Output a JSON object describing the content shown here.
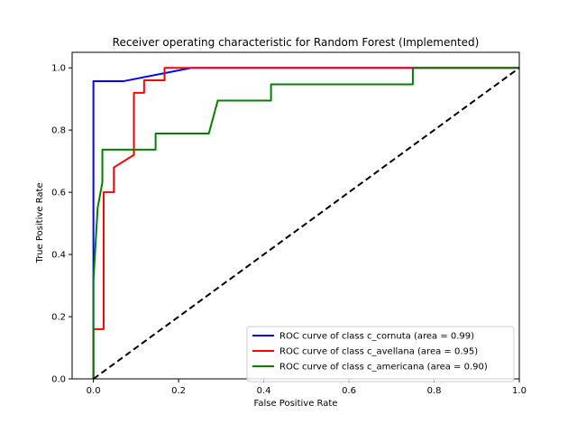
{
  "chart_data": {
    "type": "line",
    "title": "Receiver operating characteristic for Random Forest (Implemented)",
    "xlabel": "False Positive Rate",
    "ylabel": "True Positive Rate",
    "xlim": [
      -0.05,
      1.0
    ],
    "ylim": [
      0.0,
      1.05
    ],
    "xticks": [
      0.0,
      0.2,
      0.4,
      0.6,
      0.8,
      1.0
    ],
    "xtick_labels": [
      "0.0",
      "0.2",
      "0.4",
      "0.6",
      "0.8",
      "1.0"
    ],
    "yticks": [
      0.0,
      0.2,
      0.4,
      0.6,
      0.8,
      1.0
    ],
    "ytick_labels": [
      "0.0",
      "0.2",
      "0.4",
      "0.6",
      "0.8",
      "1.0"
    ],
    "grid": false,
    "legend_position": "lower-right",
    "series": [
      {
        "name": "ROC curve of class c_cornuta (area = 0.99)",
        "color": "#0000ff",
        "x": [
          0.0,
          0.0,
          0.0,
          0.07,
          0.23,
          1.0
        ],
        "y": [
          0.0,
          0.33,
          0.957,
          0.957,
          1.0,
          1.0
        ]
      },
      {
        "name": "ROC curve of class c_avellana (area = 0.95)",
        "color": "#ff0000",
        "x": [
          0.0,
          0.0,
          0.024,
          0.024,
          0.048,
          0.048,
          0.095,
          0.095,
          0.119,
          0.119,
          0.167,
          0.167,
          1.0
        ],
        "y": [
          0.0,
          0.16,
          0.16,
          0.6,
          0.6,
          0.68,
          0.72,
          0.92,
          0.92,
          0.96,
          0.96,
          1.0,
          1.0
        ]
      },
      {
        "name": "ROC curve of class c_americana (area = 0.90)",
        "color": "#008000",
        "x": [
          0.0,
          0.0,
          0.01,
          0.021,
          0.021,
          0.146,
          0.146,
          0.271,
          0.292,
          0.417,
          0.417,
          0.75,
          0.75,
          1.0
        ],
        "y": [
          0.0,
          0.316,
          0.55,
          0.632,
          0.737,
          0.737,
          0.789,
          0.789,
          0.895,
          0.895,
          0.947,
          0.947,
          1.0,
          1.0
        ]
      }
    ],
    "reference_line": {
      "color": "#000000",
      "style": "dashed",
      "x": [
        0.0,
        1.0
      ],
      "y": [
        0.0,
        1.0
      ]
    }
  }
}
